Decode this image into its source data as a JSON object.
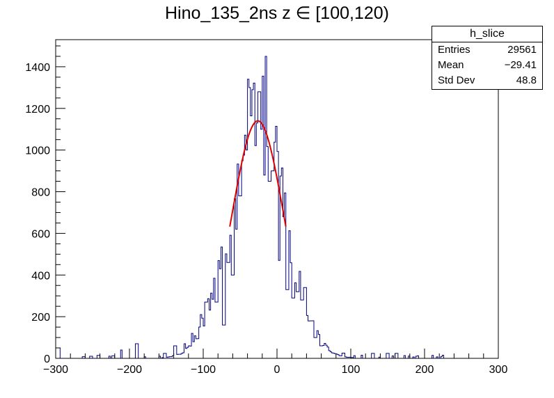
{
  "chart_data": {
    "type": "bar",
    "title": "Hino_135_2ns z  ∈ [100,120)",
    "xlim": [
      -300,
      300
    ],
    "ylim": [
      0,
      1530
    ],
    "x_ticks": [
      "−300",
      "−200",
      "−100",
      "0",
      "100",
      "200",
      "300"
    ],
    "y_ticks": [
      "0",
      "200",
      "400",
      "600",
      "800",
      "1000",
      "1200",
      "1400"
    ],
    "x_tick_values": [
      -300,
      -200,
      -100,
      0,
      100,
      200,
      300
    ],
    "y_tick_values": [
      0,
      200,
      400,
      600,
      800,
      1000,
      1200,
      1400
    ],
    "grid": false,
    "histogram_color": "#000080",
    "fit_color": "#e00000",
    "bin_width": 2,
    "peaks": [
      {
        "x": -300,
        "w": 10,
        "y": 50
      },
      {
        "x": -262,
        "w": 2,
        "y": 8
      },
      {
        "x": -252,
        "w": 2,
        "y": 10
      },
      {
        "x": -242,
        "w": 2,
        "y": 14
      },
      {
        "x": -222,
        "w": 2,
        "y": 12
      },
      {
        "x": -211,
        "w": 3,
        "y": 40
      },
      {
        "x": -190,
        "w": 3,
        "y": 70
      },
      {
        "x": -152,
        "w": 2,
        "y": 24
      },
      {
        "x": -138,
        "w": 3,
        "y": 60
      },
      {
        "x": -125,
        "w": 3,
        "y": 70
      },
      {
        "x": -115,
        "w": 3,
        "y": 120
      },
      {
        "x": -103,
        "w": 3,
        "y": 210
      },
      {
        "x": -96,
        "w": 3,
        "y": 270
      },
      {
        "x": -82,
        "w": 3,
        "y": 270
      },
      {
        "x": -77,
        "w": 3,
        "y": 430
      },
      {
        "x": -72,
        "w": 3,
        "y": 160
      },
      {
        "x": -66,
        "w": 3,
        "y": 460
      },
      {
        "x": -60,
        "w": 3,
        "y": 400
      },
      {
        "x": -55,
        "w": 3,
        "y": 620
      },
      {
        "x": -50,
        "w": 3,
        "y": 780
      },
      {
        "x": -41,
        "w": 3,
        "y": 1000
      },
      {
        "x": -39,
        "w": 2,
        "y": 1340
      },
      {
        "x": -33,
        "w": 3,
        "y": 1290
      },
      {
        "x": -27,
        "w": 3,
        "y": 1130
      },
      {
        "x": -24,
        "w": 2,
        "y": 1280
      },
      {
        "x": -21,
        "w": 3,
        "y": 1100
      },
      {
        "x": -15,
        "w": 2,
        "y": 1450
      },
      {
        "x": -10,
        "w": 3,
        "y": 850
      },
      {
        "x": -6,
        "w": 3,
        "y": 900
      },
      {
        "x": 3,
        "w": 3,
        "y": 470
      },
      {
        "x": 14,
        "w": 3,
        "y": 330
      },
      {
        "x": 22,
        "w": 3,
        "y": 290
      },
      {
        "x": 28,
        "w": 3,
        "y": 320
      },
      {
        "x": 34,
        "w": 3,
        "y": 280
      },
      {
        "x": 38,
        "w": 3,
        "y": 340
      },
      {
        "x": 46,
        "w": 3,
        "y": 180
      },
      {
        "x": 52,
        "w": 3,
        "y": 100
      },
      {
        "x": 60,
        "w": 3,
        "y": 60
      },
      {
        "x": 90,
        "w": 3,
        "y": 25
      },
      {
        "x": 130,
        "w": 3,
        "y": 24
      },
      {
        "x": 150,
        "w": 3,
        "y": 24
      },
      {
        "x": 162,
        "w": 3,
        "y": 24
      },
      {
        "x": 225,
        "w": 3,
        "y": 15
      }
    ],
    "fit": {
      "type": "gaussian",
      "amplitude": 1140,
      "mean": -26,
      "sigma": 35,
      "x_range": [
        -64,
        12
      ]
    }
  },
  "stats": {
    "name": "h_slice",
    "rows": [
      {
        "label": "Entries",
        "value": "29561"
      },
      {
        "label": "Mean",
        "value": "−29.41"
      },
      {
        "label": "Std Dev",
        "value": "48.8"
      }
    ]
  }
}
